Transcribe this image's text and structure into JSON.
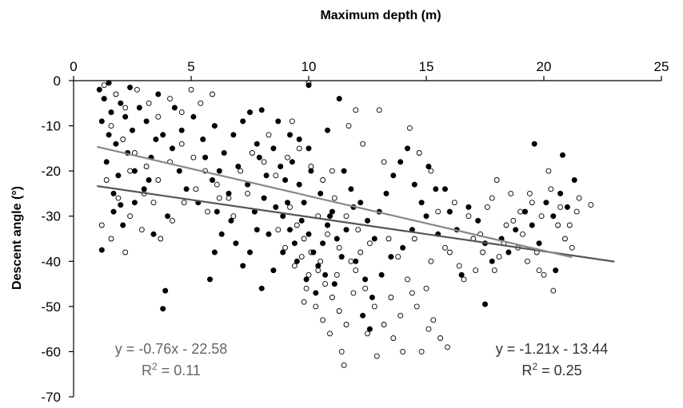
{
  "chart_data": {
    "type": "scatter",
    "title": "",
    "xlabel": "Maximum depth (m)",
    "ylabel": "Descent angle (°)",
    "xlim": [
      0,
      25
    ],
    "ylim": [
      -70,
      0
    ],
    "x_ticks": [
      "0",
      "5",
      "10",
      "15",
      "20",
      "25"
    ],
    "y_ticks": [
      "0",
      "-10",
      "-20",
      "-30",
      "-40",
      "-50",
      "-60",
      "-70"
    ],
    "x_axis_position": "top",
    "grid": false,
    "series": [
      {
        "marker": "filled-circle",
        "color": "#000000",
        "points": [
          [
            1.1,
            -2
          ],
          [
            1.3,
            -4
          ],
          [
            1.6,
            -7
          ],
          [
            1.2,
            -9
          ],
          [
            1.5,
            -12
          ],
          [
            2.0,
            -5
          ],
          [
            2.2,
            -8
          ],
          [
            1.8,
            -14
          ],
          [
            2.5,
            -11
          ],
          [
            1.4,
            -18
          ],
          [
            1.9,
            -21
          ],
          [
            2.3,
            -16
          ],
          [
            2.8,
            -6
          ],
          [
            3.1,
            -9
          ],
          [
            3.5,
            -13
          ],
          [
            1.7,
            -25
          ],
          [
            2.6,
            -20
          ],
          [
            3.0,
            -24
          ],
          [
            3.3,
            -17
          ],
          [
            3.8,
            -12
          ],
          [
            4.2,
            -15
          ],
          [
            4.5,
            -20
          ],
          [
            1.2,
            -37.5
          ],
          [
            1.7,
            -29
          ],
          [
            2.1,
            -32
          ],
          [
            2.6,
            -27
          ],
          [
            3.4,
            -34
          ],
          [
            4.0,
            -30
          ],
          [
            3.9,
            -46.5
          ],
          [
            3.8,
            -50.5
          ],
          [
            5.8,
            -44
          ],
          [
            4.6,
            -11
          ],
          [
            5.1,
            -8
          ],
          [
            5.5,
            -13
          ],
          [
            6.0,
            -10
          ],
          [
            4.8,
            -24
          ],
          [
            5.3,
            -27
          ],
          [
            5.9,
            -22
          ],
          [
            6.4,
            -16
          ],
          [
            6.8,
            -12
          ],
          [
            7.2,
            -9
          ],
          [
            7.5,
            -7
          ],
          [
            7.8,
            -14
          ],
          [
            6.2,
            -20
          ],
          [
            6.6,
            -25
          ],
          [
            7.0,
            -19
          ],
          [
            7.4,
            -23
          ],
          [
            7.9,
            -17
          ],
          [
            8.2,
            -21
          ],
          [
            8.5,
            -15
          ],
          [
            8.8,
            -19
          ],
          [
            9.0,
            -22
          ],
          [
            9.3,
            -18
          ],
          [
            9.6,
            -23
          ],
          [
            9.8,
            -27
          ],
          [
            8.1,
            -26
          ],
          [
            8.6,
            -28
          ],
          [
            8.9,
            -30
          ],
          [
            9.2,
            -33
          ],
          [
            9.4,
            -36
          ],
          [
            9.7,
            -31
          ],
          [
            10.0,
            -34
          ],
          [
            10.2,
            -38
          ],
          [
            10.4,
            -41
          ],
          [
            10.6,
            -36
          ],
          [
            10.8,
            -32
          ],
          [
            11.0,
            -29
          ],
          [
            11.2,
            -35
          ],
          [
            11.4,
            -39
          ],
          [
            9.5,
            -40
          ],
          [
            9.9,
            -44
          ],
          [
            10.3,
            -47
          ],
          [
            10.7,
            -43
          ],
          [
            11.1,
            -45
          ],
          [
            8.9,
            -38
          ],
          [
            8.5,
            -42
          ],
          [
            8.0,
            -46
          ],
          [
            8.3,
            -34
          ],
          [
            7.8,
            -33
          ],
          [
            7.5,
            -38
          ],
          [
            7.2,
            -41
          ],
          [
            6.9,
            -36
          ],
          [
            6.7,
            -31
          ],
          [
            6.3,
            -34
          ],
          [
            6.0,
            -38
          ],
          [
            7.7,
            -29
          ],
          [
            8.0,
            -6.5
          ],
          [
            9.2,
            -12
          ],
          [
            10.0,
            -15
          ],
          [
            10.8,
            -11
          ],
          [
            11.5,
            -20
          ],
          [
            11.8,
            -24
          ],
          [
            12.2,
            -27
          ],
          [
            12.5,
            -31
          ],
          [
            12.8,
            -35
          ],
          [
            13.0,
            -29
          ],
          [
            13.3,
            -25
          ],
          [
            13.6,
            -21
          ],
          [
            13.9,
            -18
          ],
          [
            14.2,
            -15
          ],
          [
            14.5,
            -23
          ],
          [
            14.8,
            -27
          ],
          [
            15.1,
            -19
          ],
          [
            15.4,
            -24
          ],
          [
            12.0,
            -40
          ],
          [
            12.4,
            -44
          ],
          [
            12.7,
            -48
          ],
          [
            13.1,
            -43
          ],
          [
            13.5,
            -39
          ],
          [
            12.3,
            -52
          ],
          [
            12.6,
            -55
          ],
          [
            14.0,
            -37
          ],
          [
            14.4,
            -33
          ],
          [
            15.0,
            -30
          ],
          [
            15.5,
            -34
          ],
          [
            16.0,
            -29
          ],
          [
            16.3,
            -33
          ],
          [
            16.8,
            -28
          ],
          [
            17.2,
            -31
          ],
          [
            17.5,
            -36
          ],
          [
            17.8,
            -40
          ],
          [
            18.2,
            -35
          ],
          [
            18.5,
            -38
          ],
          [
            18.8,
            -33
          ],
          [
            19.2,
            -29
          ],
          [
            19.5,
            -32
          ],
          [
            19.8,
            -36
          ],
          [
            20.1,
            -27
          ],
          [
            20.4,
            -30
          ],
          [
            20.7,
            -25
          ],
          [
            21.0,
            -28
          ],
          [
            21.3,
            -22
          ],
          [
            20.8,
            -16.5
          ],
          [
            19.6,
            -14
          ],
          [
            17.5,
            -49.5
          ],
          [
            20.5,
            -42
          ],
          [
            16.5,
            -43
          ],
          [
            15.8,
            -24
          ],
          [
            11.3,
            -4
          ],
          [
            10.0,
            -1
          ],
          [
            10.9,
            -30
          ],
          [
            11.6,
            -33
          ],
          [
            9.1,
            -27
          ],
          [
            10.5,
            -25
          ],
          [
            11.9,
            -28
          ],
          [
            2.4,
            -1.5
          ],
          [
            1.5,
            -0.5
          ],
          [
            3.6,
            -3
          ],
          [
            4.3,
            -6
          ],
          [
            5.6,
            -17
          ],
          [
            6.1,
            -29
          ],
          [
            3.2,
            -22
          ],
          [
            2.0,
            -27.5
          ],
          [
            9.6,
            -13
          ],
          [
            8.7,
            -9
          ],
          [
            10.1,
            -20
          ]
        ]
      },
      {
        "marker": "open-circle",
        "color": "#000000",
        "points": [
          [
            1.3,
            -1
          ],
          [
            1.8,
            -3
          ],
          [
            2.2,
            -6
          ],
          [
            2.7,
            -2
          ],
          [
            3.2,
            -5
          ],
          [
            3.6,
            -8
          ],
          [
            4.1,
            -4
          ],
          [
            4.6,
            -7
          ],
          [
            5.0,
            -2
          ],
          [
            5.4,
            -5
          ],
          [
            5.9,
            -3
          ],
          [
            1.6,
            -10
          ],
          [
            2.1,
            -13
          ],
          [
            2.6,
            -16
          ],
          [
            3.1,
            -19
          ],
          [
            3.6,
            -22
          ],
          [
            4.1,
            -18
          ],
          [
            4.6,
            -14
          ],
          [
            5.1,
            -17
          ],
          [
            5.6,
            -20
          ],
          [
            6.1,
            -23
          ],
          [
            6.6,
            -26
          ],
          [
            7.1,
            -20
          ],
          [
            7.6,
            -16
          ],
          [
            8.1,
            -18
          ],
          [
            8.6,
            -21
          ],
          [
            9.1,
            -17
          ],
          [
            9.6,
            -15
          ],
          [
            10.1,
            -19
          ],
          [
            10.6,
            -22
          ],
          [
            11.1,
            -26
          ],
          [
            11.6,
            -30
          ],
          [
            12.1,
            -33
          ],
          [
            12.6,
            -36
          ],
          [
            1.4,
            -22
          ],
          [
            1.9,
            -26
          ],
          [
            2.4,
            -30
          ],
          [
            2.9,
            -33
          ],
          [
            3.4,
            -27
          ],
          [
            1.2,
            -32
          ],
          [
            1.6,
            -35
          ],
          [
            2.2,
            -38
          ],
          [
            9.2,
            -28
          ],
          [
            9.5,
            -32
          ],
          [
            9.8,
            -35
          ],
          [
            10.1,
            -38
          ],
          [
            10.4,
            -42
          ],
          [
            10.7,
            -45
          ],
          [
            11.0,
            -48
          ],
          [
            11.3,
            -51
          ],
          [
            11.6,
            -54
          ],
          [
            10.9,
            -56
          ],
          [
            11.4,
            -60
          ],
          [
            11.5,
            -63
          ],
          [
            10.3,
            -50
          ],
          [
            10.6,
            -53
          ],
          [
            9.9,
            -46
          ],
          [
            9.4,
            -41
          ],
          [
            9.0,
            -37
          ],
          [
            8.7,
            -33
          ],
          [
            12.0,
            -42
          ],
          [
            12.4,
            -46
          ],
          [
            12.8,
            -50
          ],
          [
            13.2,
            -54
          ],
          [
            13.6,
            -57
          ],
          [
            14.0,
            -60
          ],
          [
            12.9,
            -61
          ],
          [
            13.5,
            -48
          ],
          [
            14.2,
            -44
          ],
          [
            14.6,
            -50
          ],
          [
            15.0,
            -46
          ],
          [
            15.3,
            -53
          ],
          [
            15.6,
            -57
          ],
          [
            15.9,
            -59
          ],
          [
            14.8,
            -60
          ],
          [
            13.8,
            -39
          ],
          [
            14.5,
            -35
          ],
          [
            15.2,
            -40
          ],
          [
            15.8,
            -37
          ],
          [
            16.4,
            -41
          ],
          [
            17.0,
            -35
          ],
          [
            17.4,
            -38
          ],
          [
            17.9,
            -42
          ],
          [
            18.3,
            -36
          ],
          [
            18.7,
            -31
          ],
          [
            19.1,
            -34
          ],
          [
            19.5,
            -27
          ],
          [
            19.9,
            -30
          ],
          [
            20.3,
            -24
          ],
          [
            20.7,
            -28
          ],
          [
            21.1,
            -32
          ],
          [
            21.5,
            -26
          ],
          [
            22.0,
            -27.5
          ],
          [
            19.3,
            -40
          ],
          [
            20.0,
            -43
          ],
          [
            20.4,
            -46.5
          ],
          [
            18.0,
            -22
          ],
          [
            18.6,
            -25
          ],
          [
            17.6,
            -28
          ],
          [
            16.8,
            -30
          ],
          [
            16.2,
            -27
          ],
          [
            20.2,
            -20
          ],
          [
            21.4,
            -29
          ],
          [
            19.7,
            -38
          ],
          [
            18.9,
            -37
          ],
          [
            17.3,
            -34
          ],
          [
            14.3,
            -10.5
          ],
          [
            14.7,
            -16
          ],
          [
            15.2,
            -20
          ],
          [
            13.0,
            -6.5
          ],
          [
            12.0,
            -6.5
          ],
          [
            10.0,
            -0.5
          ],
          [
            15.5,
            -29
          ],
          [
            16.0,
            -38
          ],
          [
            12.3,
            -14
          ],
          [
            13.2,
            -18
          ],
          [
            11.7,
            -10
          ],
          [
            11.0,
            -20
          ],
          [
            9.3,
            -9
          ],
          [
            8.3,
            -12
          ],
          [
            7.4,
            -25
          ],
          [
            6.8,
            -30
          ],
          [
            6.2,
            -26
          ],
          [
            5.7,
            -29
          ],
          [
            5.2,
            -24
          ],
          [
            4.7,
            -27
          ],
          [
            4.2,
            -31
          ],
          [
            3.7,
            -35
          ],
          [
            3.0,
            -25
          ],
          [
            2.4,
            -20
          ],
          [
            11.8,
            -40
          ],
          [
            12.2,
            -38
          ],
          [
            13.4,
            -35
          ],
          [
            10.8,
            -34
          ],
          [
            10.4,
            -30
          ],
          [
            11.2,
            -43
          ],
          [
            9.7,
            -39
          ],
          [
            10.0,
            -43
          ],
          [
            11.9,
            -47
          ],
          [
            12.5,
            -56
          ],
          [
            13.9,
            -52
          ],
          [
            15.1,
            -55
          ],
          [
            14.4,
            -47
          ],
          [
            11.3,
            -37
          ],
          [
            10.5,
            -40
          ],
          [
            9.8,
            -49
          ],
          [
            20.9,
            -35
          ],
          [
            19.0,
            -29
          ],
          [
            18.4,
            -32
          ],
          [
            17.8,
            -26
          ],
          [
            19.4,
            -25
          ],
          [
            20.6,
            -32
          ],
          [
            21.2,
            -37
          ],
          [
            17.1,
            -42
          ],
          [
            16.6,
            -44
          ],
          [
            18.1,
            -39
          ],
          [
            19.8,
            -42
          ]
        ]
      }
    ],
    "trendlines": [
      {
        "label": "y = -0.76x - 22.58",
        "r2": "R² = 0.11",
        "slope": -0.76,
        "intercept": -22.58,
        "x_range": [
          1.0,
          23.0
        ],
        "color": "#555555"
      },
      {
        "label": "y = -1.21x - 13.44",
        "r2": "R² = 0.25",
        "slope": -1.21,
        "intercept": -13.44,
        "x_range": [
          1.0,
          21.2
        ],
        "color": "#888888"
      }
    ],
    "annotations": {
      "left_equation": "y = -0.76x - 22.58",
      "left_r2_prefix": "R",
      "left_r2_value": " = 0.11",
      "right_equation": "y = -1.21x - 13.44",
      "right_r2_prefix": "R",
      "right_r2_value": " = 0.25",
      "r2_superscript": "2"
    }
  }
}
